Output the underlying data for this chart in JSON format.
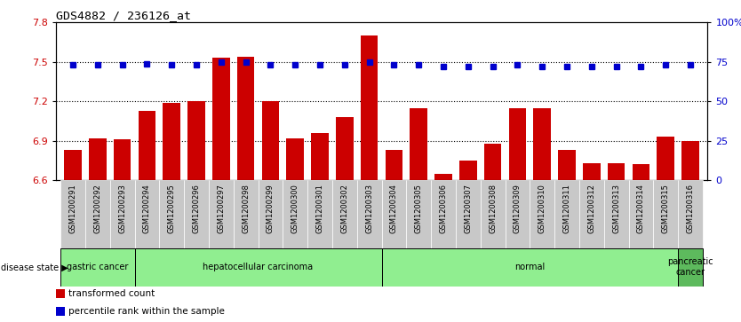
{
  "title": "GDS4882 / 236126_at",
  "samples": [
    "GSM1200291",
    "GSM1200292",
    "GSM1200293",
    "GSM1200294",
    "GSM1200295",
    "GSM1200296",
    "GSM1200297",
    "GSM1200298",
    "GSM1200299",
    "GSM1200300",
    "GSM1200301",
    "GSM1200302",
    "GSM1200303",
    "GSM1200304",
    "GSM1200305",
    "GSM1200306",
    "GSM1200307",
    "GSM1200308",
    "GSM1200309",
    "GSM1200310",
    "GSM1200311",
    "GSM1200312",
    "GSM1200313",
    "GSM1200314",
    "GSM1200315",
    "GSM1200316"
  ],
  "bar_values": [
    6.83,
    6.92,
    6.91,
    7.13,
    7.19,
    7.2,
    7.53,
    7.54,
    7.2,
    6.92,
    6.96,
    7.08,
    7.7,
    6.83,
    7.15,
    6.65,
    6.75,
    6.88,
    7.15,
    7.15,
    6.83,
    6.73,
    6.73,
    6.72,
    6.93,
    6.9
  ],
  "percentile_values": [
    73,
    73,
    73,
    74,
    73,
    73,
    75,
    75,
    73,
    73,
    73,
    73,
    75,
    73,
    73,
    72,
    72,
    72,
    73,
    72,
    72,
    72,
    72,
    72,
    73,
    73
  ],
  "ylim_left": [
    6.6,
    7.8
  ],
  "ylim_right": [
    0,
    100
  ],
  "yticks_left": [
    6.6,
    6.9,
    7.2,
    7.5,
    7.8
  ],
  "yticks_right": [
    0,
    25,
    50,
    75,
    100
  ],
  "ytick_labels_left": [
    "6.6",
    "6.9",
    "7.2",
    "7.5",
    "7.8"
  ],
  "ytick_labels_right": [
    "0",
    "25",
    "50",
    "75",
    "100%"
  ],
  "hlines": [
    6.9,
    7.2,
    7.5
  ],
  "bar_color": "#cc0000",
  "percentile_color": "#0000cc",
  "bg_color": "#ffffff",
  "tick_bg_color": "#c8c8c8",
  "disease_groups": [
    {
      "label": "gastric cancer",
      "start": 0,
      "end": 2
    },
    {
      "label": "hepatocellular carcinoma",
      "start": 3,
      "end": 12
    },
    {
      "label": "normal",
      "start": 13,
      "end": 24
    },
    {
      "label": "pancreatic\ncancer",
      "start": 25,
      "end": 25
    }
  ],
  "group_color": "#90ee90",
  "pancreatic_color": "#5dba5d",
  "legend_items": [
    {
      "color": "#cc0000",
      "label": "transformed count"
    },
    {
      "color": "#0000cc",
      "label": "percentile rank within the sample"
    }
  ]
}
